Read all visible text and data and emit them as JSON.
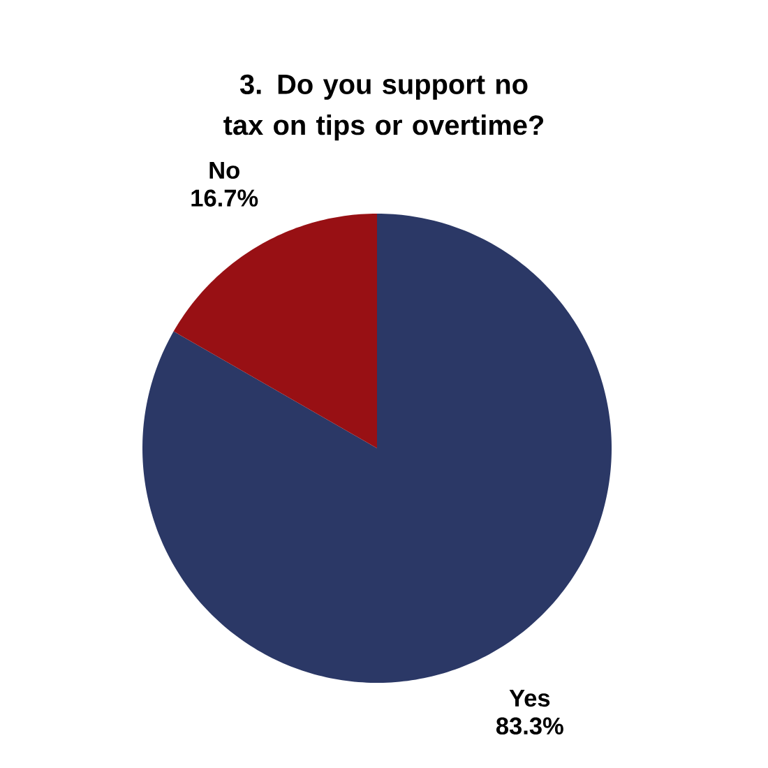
{
  "chart_data": {
    "type": "pie",
    "title": "3.  Do you support no tax on tips or overtime?",
    "categories": [
      "Yes",
      "No"
    ],
    "values": [
      83.3,
      16.7
    ],
    "value_labels": [
      "83.3%",
      "16.7%"
    ],
    "colors": [
      "#2b3866",
      "#981014"
    ]
  }
}
